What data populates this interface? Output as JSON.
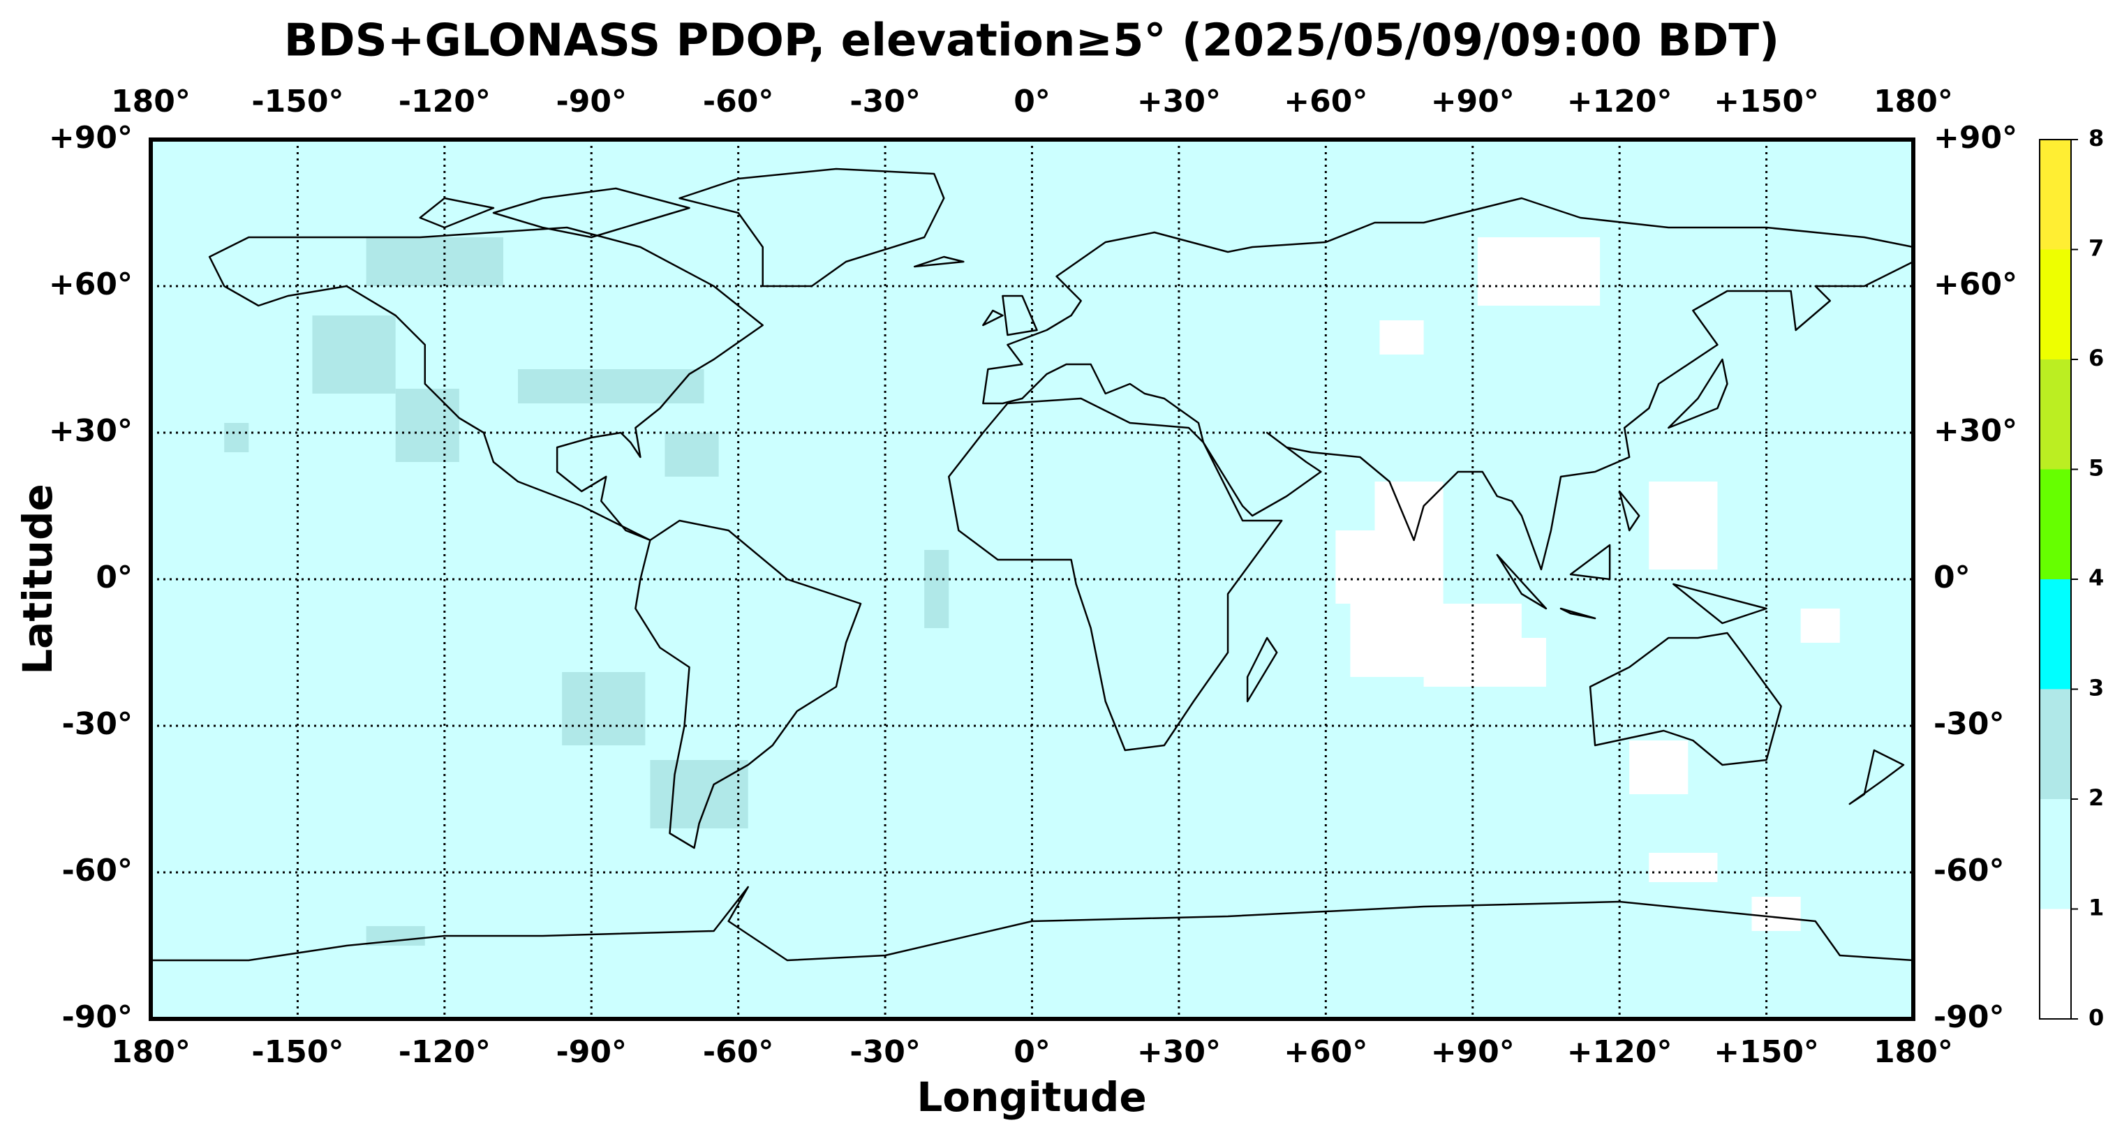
{
  "chart_data": {
    "type": "heatmap",
    "title": "BDS+GLONASS PDOP, elevation≥5° (2025/05/09/09:00 BDT)",
    "xlabel": "Longitude",
    "ylabel": "Latitude",
    "xlim": [
      -180,
      180
    ],
    "xticks": [
      {
        "value": -180,
        "label": "180°"
      },
      {
        "value": -150,
        "label": "-150°"
      },
      {
        "value": -120,
        "label": "-120°"
      },
      {
        "value": -90,
        "label": "-90°"
      },
      {
        "value": -60,
        "label": "-60°"
      },
      {
        "value": -30,
        "label": "-30°"
      },
      {
        "value": 0,
        "label": "0°"
      },
      {
        "value": 30,
        "label": "+30°"
      },
      {
        "value": 60,
        "label": "+60°"
      },
      {
        "value": 90,
        "label": "+90°"
      },
      {
        "value": 120,
        "label": "+120°"
      },
      {
        "value": 150,
        "label": "+150°"
      },
      {
        "value": 180,
        "label": "180°"
      }
    ],
    "ylim": [
      -90,
      90
    ],
    "yticks": [
      {
        "value": -90,
        "label": "-90°"
      },
      {
        "value": -60,
        "label": "-60°"
      },
      {
        "value": -30,
        "label": "-30°"
      },
      {
        "value": 0,
        "label": "0°"
      },
      {
        "value": 30,
        "label": "+30°"
      },
      {
        "value": 60,
        "label": "+60°"
      },
      {
        "value": 90,
        "label": "+90°"
      }
    ],
    "grid": true,
    "colorbar": {
      "levels": [
        0,
        1,
        2,
        3,
        4,
        5,
        6,
        7,
        8
      ],
      "colors": [
        "#ffffff",
        "#ccffff",
        "#b0e8e8",
        "#00ffff",
        "#66ff00",
        "#bbee22",
        "#eeff00",
        "#ffee33"
      ]
    },
    "cells": [
      {
        "lon": [
          -180,
          180
        ],
        "lat": [
          -90,
          90
        ],
        "value": 1.5
      },
      {
        "lon": [
          62,
          84
        ],
        "lat": [
          -5,
          10
        ],
        "value": 0.5
      },
      {
        "lon": [
          70,
          84
        ],
        "lat": [
          10,
          20
        ],
        "value": 0.5
      },
      {
        "lon": [
          65,
          100
        ],
        "lat": [
          -20,
          -5
        ],
        "value": 0.5
      },
      {
        "lon": [
          80,
          105
        ],
        "lat": [
          -22,
          -12
        ],
        "value": 0.5
      },
      {
        "lon": [
          122,
          134
        ],
        "lat": [
          -44,
          -33
        ],
        "value": 0.5
      },
      {
        "lon": [
          126,
          140
        ],
        "lat": [
          -62,
          -56
        ],
        "value": 0.5
      },
      {
        "lon": [
          91,
          116
        ],
        "lat": [
          56,
          70
        ],
        "value": 0.5
      },
      {
        "lon": [
          71,
          80
        ],
        "lat": [
          46,
          53
        ],
        "value": 0.5
      },
      {
        "lon": [
          126,
          140
        ],
        "lat": [
          2,
          20
        ],
        "value": 0.5
      },
      {
        "lon": [
          157,
          165
        ],
        "lat": [
          -13,
          -6
        ],
        "value": 0.5
      },
      {
        "lon": [
          147,
          157
        ],
        "lat": [
          -72,
          -65
        ],
        "value": 0.5
      },
      {
        "lon": [
          -136,
          -108
        ],
        "lat": [
          60,
          70
        ],
        "value": 2.5
      },
      {
        "lon": [
          -147,
          -130
        ],
        "lat": [
          38,
          54
        ],
        "value": 2.5
      },
      {
        "lon": [
          -105,
          -67
        ],
        "lat": [
          36,
          43
        ],
        "value": 2.5
      },
      {
        "lon": [
          -130,
          -117
        ],
        "lat": [
          24,
          39
        ],
        "value": 2.5
      },
      {
        "lon": [
          -75,
          -64
        ],
        "lat": [
          21,
          30
        ],
        "value": 2.5
      },
      {
        "lon": [
          -96,
          -79
        ],
        "lat": [
          -34,
          -19
        ],
        "value": 2.5
      },
      {
        "lon": [
          -78,
          -58
        ],
        "lat": [
          -51,
          -37
        ],
        "value": 2.5
      },
      {
        "lon": [
          -22,
          -17
        ],
        "lat": [
          -10,
          6
        ],
        "value": 2.5
      },
      {
        "lon": [
          -136,
          -124
        ],
        "lat": [
          -75,
          -71
        ],
        "value": 2.5
      },
      {
        "lon": [
          -165,
          -160
        ],
        "lat": [
          26,
          32
        ],
        "value": 2.5
      }
    ]
  }
}
